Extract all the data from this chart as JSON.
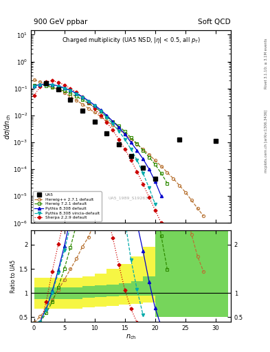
{
  "title_left": "900 GeV ppbar",
  "title_right": "Soft QCD",
  "main_title": "Charged multiplicity (UA5 NSD, |η| < 0.5, all p_T)",
  "ylabel_main": "dσ/dn_ch",
  "ylabel_ratio": "Ratio to UA5",
  "xlabel": "n_ch",
  "watermark": "UA5_1989_S1926373",
  "right_label_top": "Rivet 3.1.10; ≥ 3.1M events",
  "right_label_bot": "mcplots.cern.ch [arXiv:1306.3436]",
  "ua5_x": [
    2,
    4,
    6,
    8,
    10,
    12,
    14,
    16,
    18,
    20,
    24,
    30
  ],
  "ua5_y": [
    0.155,
    0.092,
    0.038,
    0.015,
    0.0058,
    0.0022,
    0.00085,
    0.00031,
    0.00011,
    4.5e-05,
    0.0013,
    0.0011
  ],
  "hw271_x": [
    0,
    1,
    2,
    3,
    4,
    5,
    6,
    7,
    8,
    9,
    10,
    11,
    12,
    13,
    14,
    15,
    16,
    17,
    18,
    19,
    20,
    21,
    22,
    23,
    24,
    25,
    26,
    27,
    28
  ],
  "hw271_y": [
    0.21,
    0.175,
    0.145,
    0.115,
    0.09,
    0.068,
    0.05,
    0.036,
    0.026,
    0.018,
    0.013,
    0.009,
    0.0062,
    0.0043,
    0.003,
    0.002,
    0.0013,
    0.00085,
    0.00055,
    0.00035,
    0.00021,
    0.00013,
    7.5e-05,
    4.5e-05,
    2.5e-05,
    1.4e-05,
    7e-06,
    3.5e-06,
    1.8e-06
  ],
  "hw721_x": [
    0,
    1,
    2,
    3,
    4,
    5,
    6,
    7,
    8,
    9,
    10,
    11,
    12,
    13,
    14,
    15,
    16,
    17,
    18,
    19,
    20,
    21,
    22
  ],
  "hw721_y": [
    0.13,
    0.135,
    0.125,
    0.11,
    0.095,
    0.08,
    0.065,
    0.051,
    0.038,
    0.028,
    0.02,
    0.014,
    0.009,
    0.006,
    0.004,
    0.0025,
    0.0015,
    0.0009,
    0.0005,
    0.00028,
    0.00015,
    7e-05,
    3e-05
  ],
  "py8_x": [
    0,
    1,
    2,
    3,
    4,
    5,
    6,
    7,
    8,
    9,
    10,
    11,
    12,
    13,
    14,
    15,
    16,
    17,
    18,
    19,
    20,
    21
  ],
  "py8_y": [
    0.125,
    0.14,
    0.145,
    0.14,
    0.125,
    0.105,
    0.085,
    0.066,
    0.049,
    0.035,
    0.024,
    0.016,
    0.01,
    0.006,
    0.0036,
    0.002,
    0.001,
    0.0005,
    0.00024,
    0.0001,
    3.5e-05,
    1e-05
  ],
  "py8v_x": [
    0,
    1,
    2,
    3,
    4,
    5,
    6,
    7,
    8,
    9,
    10,
    11,
    12,
    13,
    14,
    15,
    16,
    17,
    18,
    19,
    20
  ],
  "py8v_y": [
    0.12,
    0.135,
    0.14,
    0.135,
    0.12,
    0.1,
    0.08,
    0.062,
    0.046,
    0.033,
    0.022,
    0.014,
    0.0085,
    0.0048,
    0.0026,
    0.0013,
    0.00055,
    0.00022,
    7e-05,
    2e-05,
    5e-06
  ],
  "sh_x": [
    0,
    1,
    2,
    3,
    4,
    5,
    6,
    7,
    8,
    9,
    10,
    11,
    12,
    13,
    14,
    15,
    16,
    17,
    18,
    19,
    20,
    21
  ],
  "sh_y": [
    0.055,
    0.115,
    0.175,
    0.195,
    0.17,
    0.135,
    0.1,
    0.072,
    0.048,
    0.031,
    0.018,
    0.01,
    0.0055,
    0.0028,
    0.0013,
    0.00055,
    0.00022,
    8e-05,
    2.8e-05,
    9e-06,
    3e-06,
    1e-06
  ],
  "colors": {
    "ua5": "#000000",
    "hw271": "#b87333",
    "hw721": "#2e8b00",
    "py8": "#0000cc",
    "py8v": "#00aaaa",
    "sh": "#cc0000"
  },
  "ylim_main": [
    1e-06,
    15
  ],
  "ylim_ratio": [
    0.4,
    2.3
  ],
  "xlim": [
    -0.5,
    32.5
  ],
  "ratio_yticks": [
    0.5,
    1.0,
    1.5,
    2.0
  ],
  "ratio_yticklabels": [
    "0.5",
    "1",
    "1.5",
    "2"
  ],
  "ratio_yticks_r": [
    0.5,
    1.0,
    2.0
  ],
  "ratio_yticklabels_r": [
    "0.5",
    "1",
    "2"
  ]
}
